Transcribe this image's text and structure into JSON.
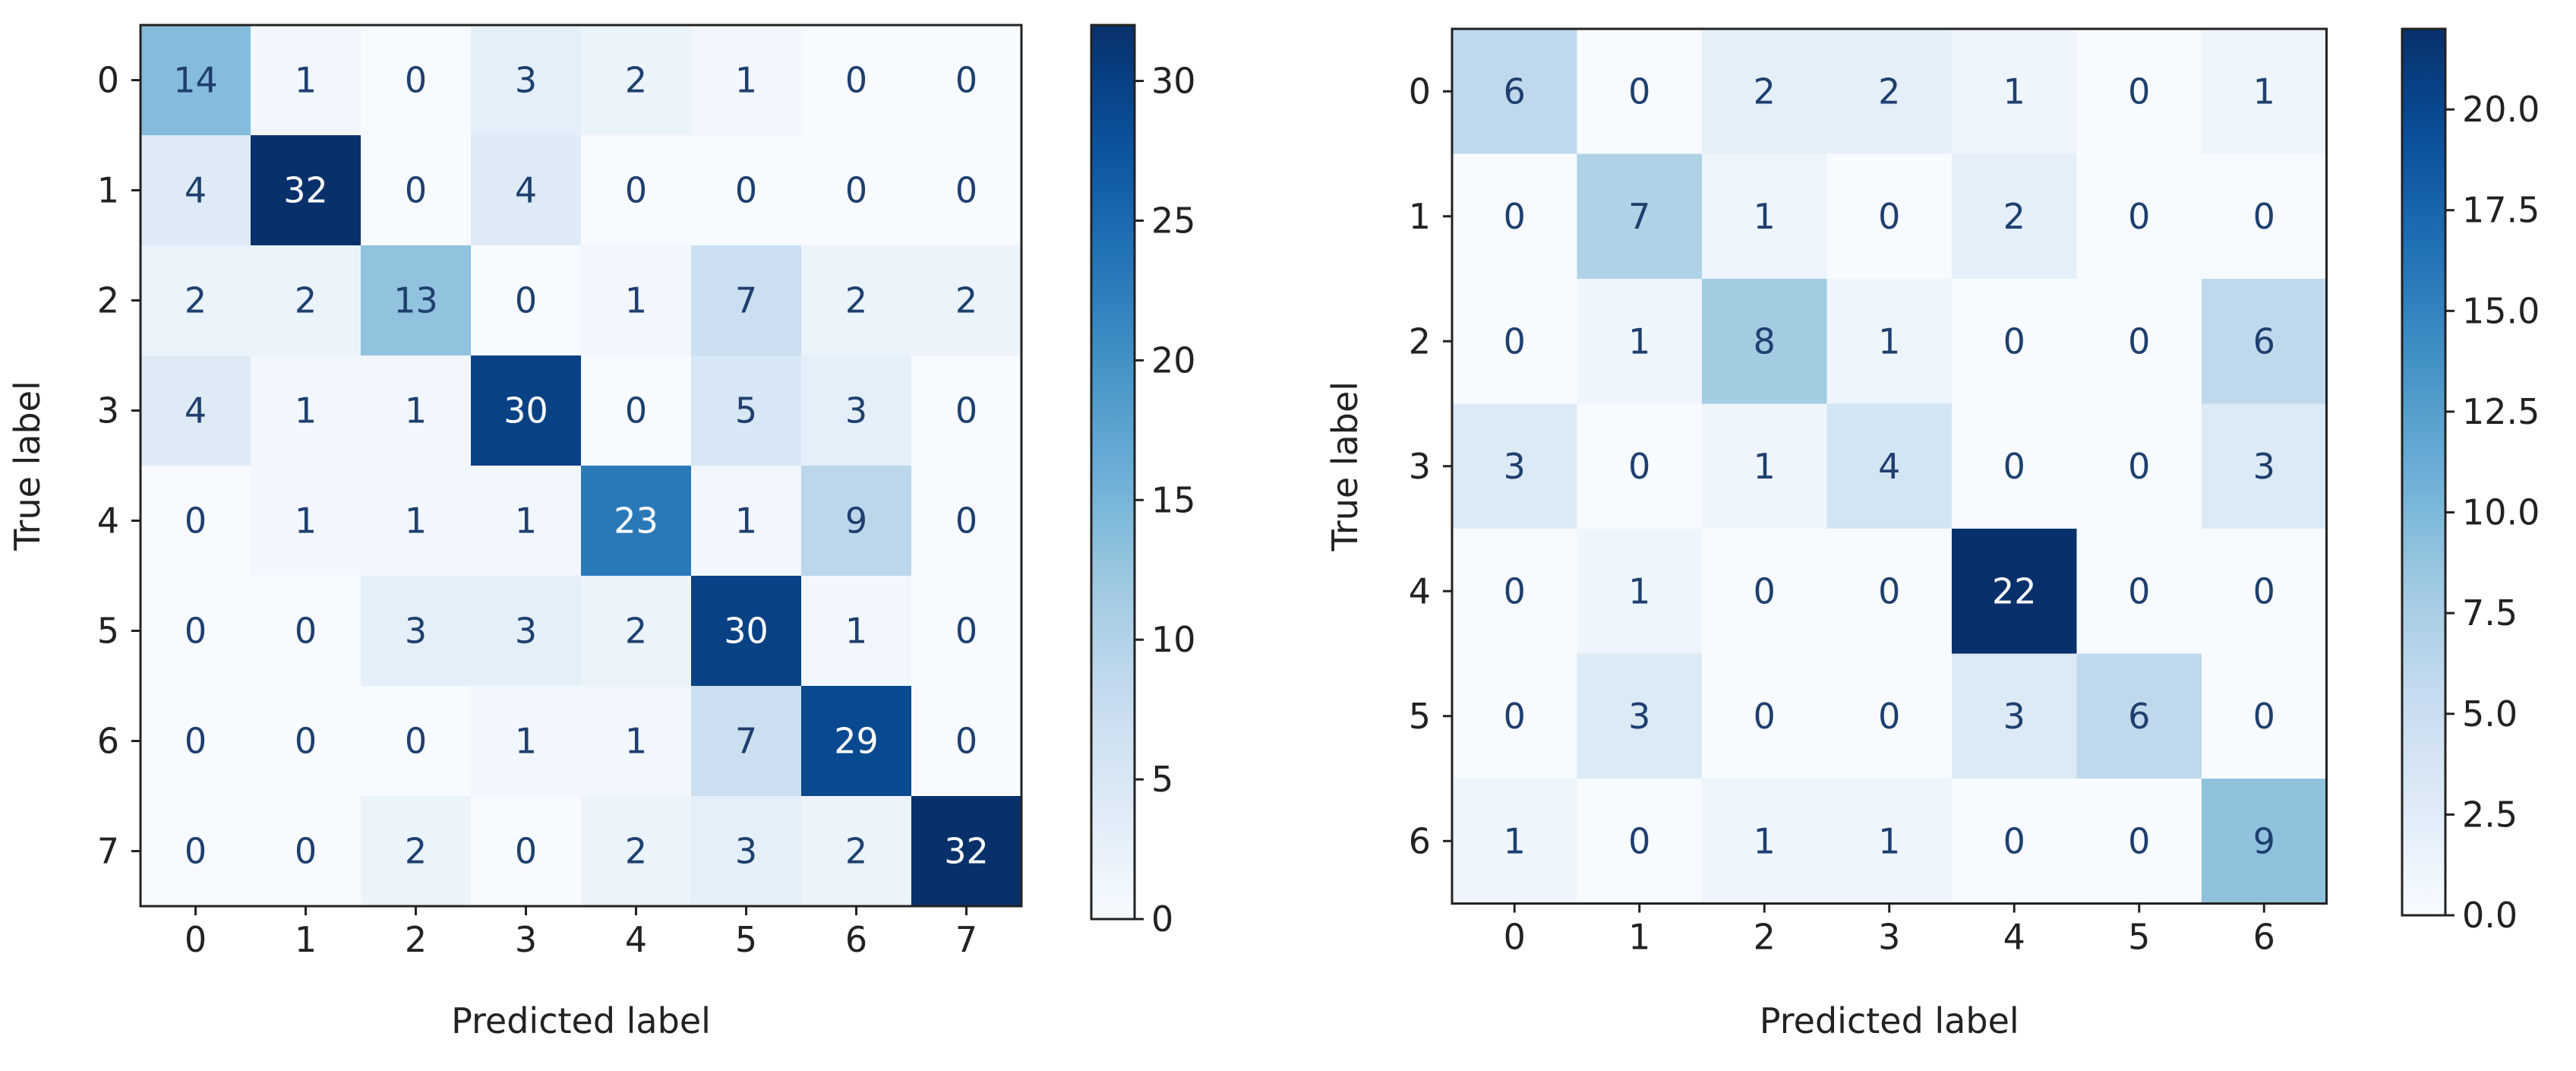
{
  "chart_data": [
    {
      "type": "heatmap",
      "title": "",
      "xlabel": "Predicted label",
      "ylabel": "True label",
      "x_ticks": [
        "0",
        "1",
        "2",
        "3",
        "4",
        "5",
        "6",
        "7"
      ],
      "y_ticks": [
        "0",
        "1",
        "2",
        "3",
        "4",
        "5",
        "6",
        "7"
      ],
      "matrix": [
        [
          14,
          1,
          0,
          3,
          2,
          1,
          0,
          0
        ],
        [
          4,
          32,
          0,
          4,
          0,
          0,
          0,
          0
        ],
        [
          2,
          2,
          13,
          0,
          1,
          7,
          2,
          2
        ],
        [
          4,
          1,
          1,
          30,
          0,
          5,
          3,
          0
        ],
        [
          0,
          1,
          1,
          1,
          23,
          1,
          9,
          0
        ],
        [
          0,
          0,
          3,
          3,
          2,
          30,
          1,
          0
        ],
        [
          0,
          0,
          0,
          1,
          1,
          7,
          29,
          0
        ],
        [
          0,
          0,
          2,
          0,
          2,
          3,
          2,
          32
        ]
      ],
      "colormap": "Blues",
      "colorbar": {
        "min": 0,
        "max": 32,
        "ticks": [
          "0",
          "5",
          "10",
          "15",
          "20",
          "25",
          "30"
        ]
      }
    },
    {
      "type": "heatmap",
      "title": "",
      "xlabel": "Predicted label",
      "ylabel": "True label",
      "x_ticks": [
        "0",
        "1",
        "2",
        "3",
        "4",
        "5",
        "6"
      ],
      "y_ticks": [
        "0",
        "1",
        "2",
        "3",
        "4",
        "5",
        "6"
      ],
      "matrix": [
        [
          6,
          0,
          2,
          2,
          1,
          0,
          1
        ],
        [
          0,
          7,
          1,
          0,
          2,
          0,
          0
        ],
        [
          0,
          1,
          8,
          1,
          0,
          0,
          6
        ],
        [
          3,
          0,
          1,
          4,
          0,
          0,
          3
        ],
        [
          0,
          1,
          0,
          0,
          22,
          0,
          0
        ],
        [
          0,
          3,
          0,
          0,
          3,
          6,
          0
        ],
        [
          1,
          0,
          1,
          1,
          0,
          0,
          9
        ]
      ],
      "colormap": "Blues",
      "colorbar": {
        "min": 0,
        "max": 22,
        "ticks": [
          "0.0",
          "2.5",
          "5.0",
          "7.5",
          "10.0",
          "12.5",
          "15.0",
          "17.5",
          "20.0"
        ]
      }
    }
  ]
}
